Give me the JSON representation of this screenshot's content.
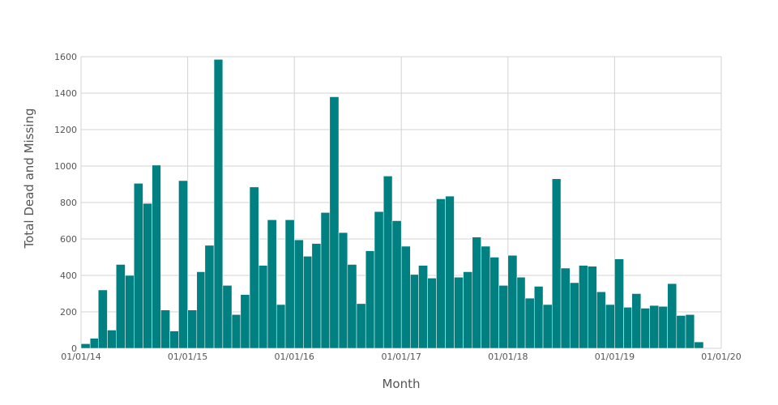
{
  "chart_data": {
    "type": "bar",
    "xlabel": "Month",
    "ylabel": "Total Dead and Missing",
    "ylim": [
      0,
      1600
    ],
    "y_ticks": [
      0,
      200,
      400,
      600,
      800,
      1000,
      1200,
      1400,
      1600
    ],
    "x_range": [
      "2014-01-01",
      "2020-01-01"
    ],
    "x_tick_labels": [
      "01/01/14",
      "01/01/15",
      "01/01/16",
      "01/01/17",
      "01/01/18",
      "01/01/19",
      "01/01/20"
    ],
    "bar_color": "#008080",
    "grid": true,
    "categories": [
      "2014-01",
      "2014-02",
      "2014-03",
      "2014-04",
      "2014-05",
      "2014-06",
      "2014-07",
      "2014-08",
      "2014-09",
      "2014-10",
      "2014-11",
      "2014-12",
      "2015-01",
      "2015-02",
      "2015-03",
      "2015-04",
      "2015-05",
      "2015-06",
      "2015-07",
      "2015-08",
      "2015-09",
      "2015-10",
      "2015-11",
      "2015-12",
      "2016-01",
      "2016-02",
      "2016-03",
      "2016-04",
      "2016-05",
      "2016-06",
      "2016-07",
      "2016-08",
      "2016-09",
      "2016-10",
      "2016-11",
      "2016-12",
      "2017-01",
      "2017-02",
      "2017-03",
      "2017-04",
      "2017-05",
      "2017-06",
      "2017-07",
      "2017-08",
      "2017-09",
      "2017-10",
      "2017-11",
      "2017-12",
      "2018-01",
      "2018-02",
      "2018-03",
      "2018-04",
      "2018-05",
      "2018-06",
      "2018-07",
      "2018-08",
      "2018-09",
      "2018-10",
      "2018-11",
      "2018-12",
      "2019-01",
      "2019-02",
      "2019-03",
      "2019-04",
      "2019-05",
      "2019-06",
      "2019-07",
      "2019-08",
      "2019-09",
      "2019-10",
      "2019-11",
      "2019-12"
    ],
    "values": [
      25,
      55,
      320,
      100,
      460,
      400,
      905,
      795,
      1005,
      210,
      95,
      920,
      210,
      420,
      565,
      1585,
      345,
      185,
      295,
      885,
      455,
      705,
      240,
      705,
      595,
      505,
      575,
      745,
      1380,
      635,
      460,
      245,
      535,
      750,
      945,
      700,
      560,
      405,
      455,
      385,
      820,
      835,
      390,
      420,
      610,
      560,
      500,
      345,
      510,
      390,
      275,
      340,
      240,
      930,
      440,
      360,
      455,
      450,
      310,
      240,
      490,
      225,
      300,
      220,
      235,
      230,
      355,
      180,
      185,
      35,
      0,
      0
    ]
  }
}
